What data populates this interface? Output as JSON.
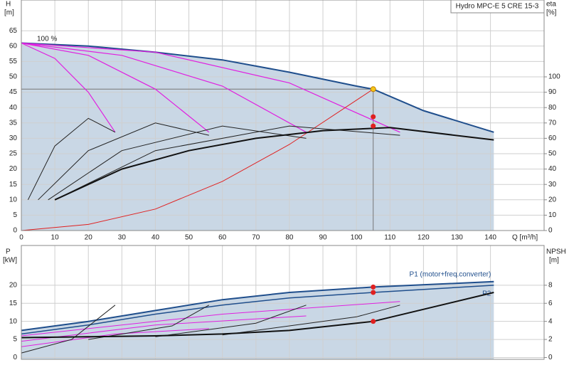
{
  "chart_data": [
    {
      "type": "line",
      "title": "Hydro MPC-E 5 CRE 15-3",
      "ylabel": "H",
      "yunit": "[m]",
      "y2label": "eta",
      "y2unit": "[%]",
      "xlabel": "Q [m³/h]",
      "annotation": "100 %",
      "xlim": [
        0,
        156
      ],
      "ylim": [
        0,
        75
      ],
      "y2lim": [
        0,
        150
      ],
      "grid": true,
      "show_xtick_labels": true,
      "xticks": [
        0,
        10,
        20,
        30,
        40,
        50,
        60,
        70,
        80,
        90,
        100,
        110,
        120,
        130,
        140
      ],
      "yticks": [
        0,
        5,
        10,
        15,
        20,
        25,
        30,
        35,
        40,
        45,
        50,
        55,
        60,
        65
      ],
      "y2ticks": [
        0,
        10,
        20,
        30,
        40,
        50,
        60,
        70,
        80,
        90,
        100
      ],
      "series": [
        {
          "color": "#1f4e8c",
          "width": 2,
          "fill": "#c9d7e5",
          "x": [
            0,
            20,
            40,
            60,
            80,
            100,
            105,
            120,
            141
          ],
          "values": [
            61,
            60,
            58,
            55.5,
            51.5,
            47,
            46,
            39,
            32
          ]
        },
        {
          "color": "#e020e0",
          "width": 1.2,
          "x": [
            0,
            10,
            20,
            28
          ],
          "values": [
            61,
            56,
            45,
            32
          ]
        },
        {
          "color": "#e020e0",
          "width": 1.2,
          "x": [
            0,
            20,
            40,
            56
          ],
          "values": [
            61,
            57,
            46,
            32
          ]
        },
        {
          "color": "#e020e0",
          "width": 1.2,
          "x": [
            0,
            30,
            60,
            85
          ],
          "values": [
            61,
            57,
            47,
            32
          ]
        },
        {
          "color": "#e020e0",
          "width": 1.2,
          "x": [
            0,
            40,
            80,
            113
          ],
          "values": [
            61,
            58,
            48,
            32
          ]
        },
        {
          "color": "#e02020",
          "width": 1,
          "x": [
            0,
            20,
            40,
            60,
            80,
            105
          ],
          "values": [
            0,
            2,
            7,
            16,
            28,
            46
          ]
        },
        {
          "color": "#222222",
          "width": 1,
          "axis": "y2",
          "x": [
            2,
            10,
            20,
            28
          ],
          "values": [
            20,
            55,
            73,
            64
          ]
        },
        {
          "color": "#222222",
          "width": 1,
          "axis": "y2",
          "x": [
            5,
            20,
            40,
            56
          ],
          "values": [
            20,
            52,
            70,
            62
          ]
        },
        {
          "color": "#222222",
          "width": 1,
          "axis": "y2",
          "x": [
            8,
            30,
            60,
            85
          ],
          "values": [
            20,
            52,
            68,
            60
          ]
        },
        {
          "color": "#222222",
          "width": 1,
          "axis": "y2",
          "x": [
            10,
            40,
            80,
            113
          ],
          "values": [
            20,
            52,
            68,
            62
          ]
        },
        {
          "color": "#111111",
          "width": 2,
          "axis": "y2",
          "x": [
            10,
            30,
            50,
            70,
            90,
            110,
            141
          ],
          "values": [
            20,
            40,
            52,
            60,
            65,
            67,
            59
          ]
        }
      ],
      "points": [
        {
          "x": 105,
          "y": 46,
          "color": "#f5c518"
        },
        {
          "x": 105,
          "y": 74,
          "axis": "y2",
          "color": "#e02020"
        },
        {
          "x": 105,
          "y": 68,
          "axis": "y2",
          "color": "#e02020"
        }
      ],
      "duty_lines": {
        "x": 105,
        "y": 46,
        "color": "#777777"
      }
    },
    {
      "type": "line",
      "ylabel": "P",
      "yunit": "[kW]",
      "y2label": "NPSH",
      "y2unit": "[m]",
      "xlim": [
        0,
        156
      ],
      "ylim": [
        -0.5,
        31
      ],
      "y2lim": [
        -0.2,
        12.4
      ],
      "grid": true,
      "show_xtick_labels": false,
      "xticks": [
        0,
        10,
        20,
        30,
        40,
        50,
        60,
        70,
        80,
        90,
        100,
        110,
        120,
        130,
        140
      ],
      "yticks": [
        0,
        5,
        10,
        15,
        20
      ],
      "y2ticks": [
        0,
        2,
        4,
        6,
        8
      ],
      "series": [
        {
          "name": "P1 (motor+freq.converter)",
          "color": "#1f4e8c",
          "width": 2,
          "fill": "#c9d7e5",
          "x": [
            0,
            20,
            40,
            60,
            80,
            105,
            141
          ],
          "values": [
            7.5,
            10,
            13,
            16,
            18,
            19.5,
            21
          ]
        },
        {
          "name": "P2",
          "color": "#1f4e8c",
          "width": 1.5,
          "x": [
            0,
            20,
            40,
            60,
            80,
            105,
            141
          ],
          "values": [
            6.5,
            9,
            12,
            14.5,
            16.5,
            18,
            20
          ]
        },
        {
          "color": "#e020e0",
          "width": 1,
          "x": [
            0,
            28,
            56
          ],
          "values": [
            3,
            6.5,
            8
          ]
        },
        {
          "color": "#e020e0",
          "width": 1,
          "x": [
            0,
            40,
            85
          ],
          "values": [
            4.5,
            9,
            11.5
          ]
        },
        {
          "color": "#e020e0",
          "width": 1,
          "x": [
            0,
            60,
            113
          ],
          "values": [
            6,
            12,
            15.5
          ]
        },
        {
          "color": "#222222",
          "width": 1,
          "axis": "y2",
          "x": [
            0,
            15,
            28
          ],
          "values": [
            0.5,
            2,
            5.8
          ]
        },
        {
          "color": "#222222",
          "width": 1,
          "axis": "y2",
          "x": [
            20,
            45,
            56
          ],
          "values": [
            2,
            3.5,
            5.8
          ]
        },
        {
          "color": "#222222",
          "width": 1,
          "axis": "y2",
          "x": [
            40,
            70,
            85
          ],
          "values": [
            2.3,
            3.8,
            5.8
          ]
        },
        {
          "color": "#222222",
          "width": 1,
          "axis": "y2",
          "x": [
            60,
            100,
            113
          ],
          "values": [
            2.5,
            4.5,
            5.8
          ]
        },
        {
          "color": "#111111",
          "width": 2,
          "axis": "y2",
          "x": [
            0,
            20,
            40,
            60,
            80,
            105,
            141
          ],
          "values": [
            2.2,
            2.3,
            2.4,
            2.6,
            3,
            4,
            7.2
          ]
        }
      ],
      "points": [
        {
          "x": 105,
          "y": 19.5,
          "color": "#e02020"
        },
        {
          "x": 105,
          "y": 18,
          "color": "#e02020"
        },
        {
          "x": 105,
          "y": 4,
          "axis": "y2",
          "color": "#e02020"
        }
      ]
    }
  ]
}
